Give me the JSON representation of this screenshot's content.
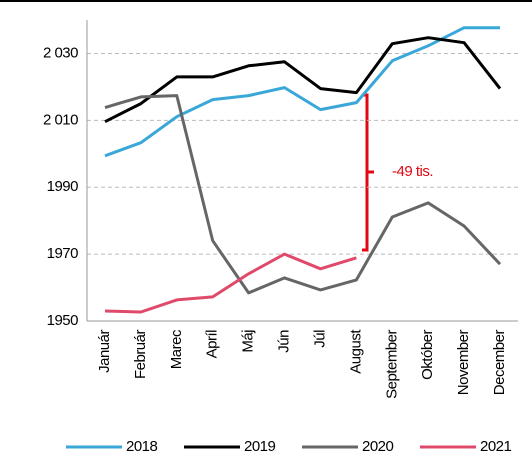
{
  "chart_data": {
    "type": "line",
    "categories": [
      "Január",
      "Február",
      "Marec",
      "Apríl",
      "Máj",
      "Jún",
      "Júl",
      "August",
      "September",
      "Október",
      "November",
      "December"
    ],
    "series": [
      {
        "name": "2018",
        "color": "#3aa7d9",
        "values": [
          1999.4,
          2003.3,
          2011.1,
          2016.2,
          2017.4,
          2019.8,
          2013.2,
          2015.3,
          2027.8,
          2032.3,
          2037.7,
          2037.7
        ]
      },
      {
        "name": "2019",
        "color": "#000000",
        "values": [
          2009.6,
          2015,
          2023,
          2023,
          2026.3,
          2027.5,
          2019.5,
          2018.3,
          2032.9,
          2034.7,
          2033.2,
          2019.5
        ]
      },
      {
        "name": "2020",
        "color": "#666666",
        "values": [
          2013.8,
          2017,
          2017.4,
          1974,
          1958.4,
          1962.9,
          1959.3,
          1962.3,
          1981.1,
          1985.3,
          1978.4,
          1967
        ]
      },
      {
        "name": "2021",
        "color": "#e04a6a",
        "values": [
          1953,
          1952.7,
          1956.3,
          1957.2,
          1964.1,
          1970,
          1965.6,
          1968.9,
          null,
          null,
          null,
          null
        ]
      }
    ],
    "ylim": [
      1950,
      2040
    ],
    "yticks": [
      1950,
      1970,
      1990,
      {
        "value": 2010,
        "label": "2 010"
      },
      {
        "value": 2030,
        "label": "2 030"
      }
    ],
    "grid": true,
    "legend": "bottom",
    "annotation": "-49 tis."
  }
}
